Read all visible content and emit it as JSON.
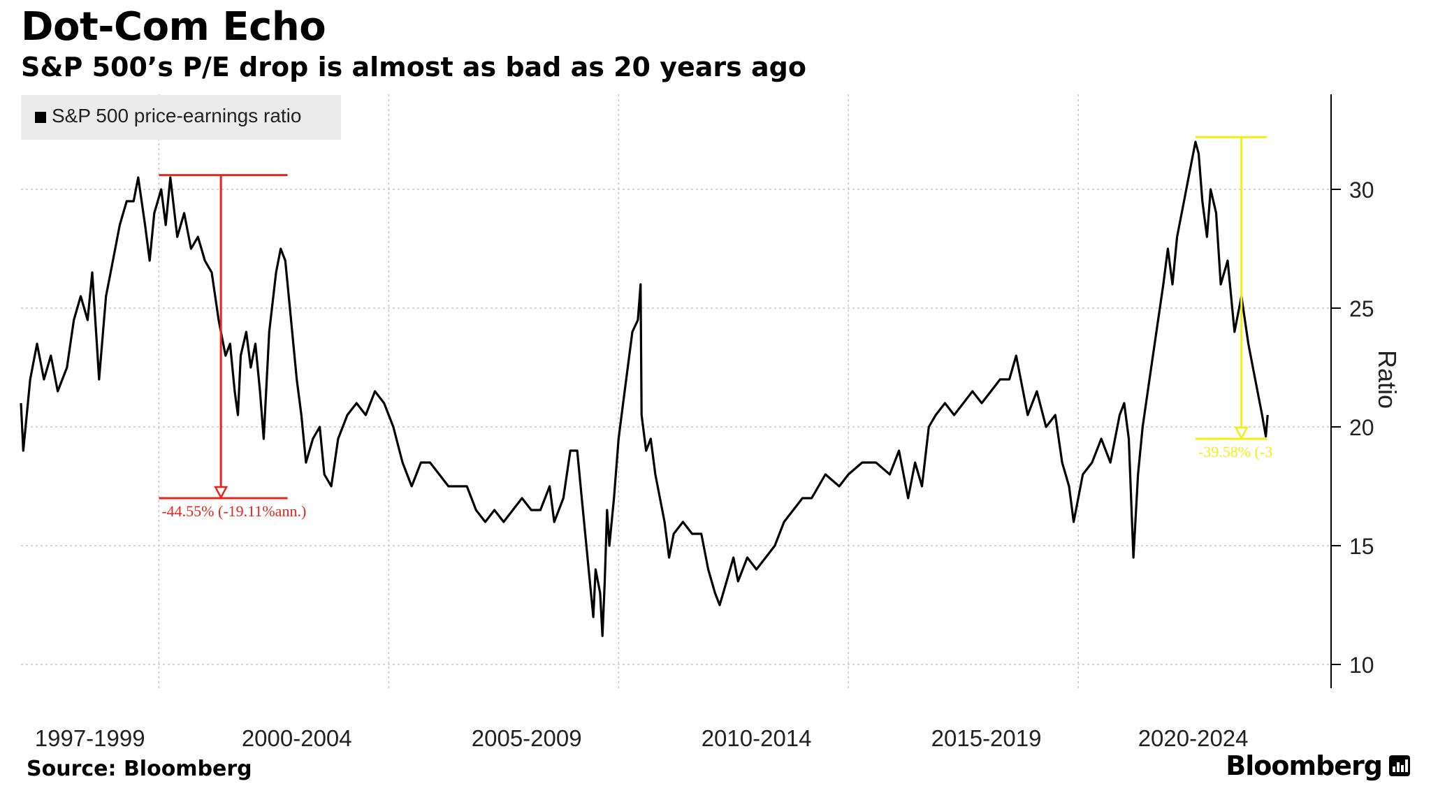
{
  "header": {
    "title": "Dot-Com Echo",
    "subtitle": "S&P 500’s P/E drop is almost as bad as 20 years ago"
  },
  "footer": {
    "source": "Source: Bloomberg",
    "brand": "Bloomberg"
  },
  "chart_data": {
    "type": "line",
    "series": [
      {
        "name": "S&P 500 price-earnings ratio",
        "color": "#000000",
        "points": [
          [
            1996.0,
            21.0
          ],
          [
            1996.05,
            19.0
          ],
          [
            1996.2,
            22.0
          ],
          [
            1996.35,
            23.5
          ],
          [
            1996.5,
            22.0
          ],
          [
            1996.65,
            23.0
          ],
          [
            1996.8,
            21.5
          ],
          [
            1997.0,
            22.5
          ],
          [
            1997.15,
            24.5
          ],
          [
            1997.3,
            25.5
          ],
          [
            1997.45,
            24.5
          ],
          [
            1997.55,
            26.5
          ],
          [
            1997.65,
            23.5
          ],
          [
            1997.7,
            22.0
          ],
          [
            1997.85,
            25.5
          ],
          [
            1998.0,
            27.0
          ],
          [
            1998.15,
            28.5
          ],
          [
            1998.3,
            29.5
          ],
          [
            1998.45,
            29.5
          ],
          [
            1998.55,
            30.5
          ],
          [
            1998.7,
            28.5
          ],
          [
            1998.8,
            27.0
          ],
          [
            1998.9,
            29.0
          ],
          [
            1999.05,
            30.0
          ],
          [
            1999.15,
            28.5
          ],
          [
            1999.25,
            30.5
          ],
          [
            1999.4,
            28.0
          ],
          [
            1999.55,
            29.0
          ],
          [
            1999.7,
            27.5
          ],
          [
            1999.85,
            28.0
          ],
          [
            2000.0,
            27.0
          ],
          [
            2000.15,
            26.5
          ],
          [
            2000.3,
            24.5
          ],
          [
            2000.45,
            23.0
          ],
          [
            2000.55,
            23.5
          ],
          [
            2000.65,
            21.5
          ],
          [
            2000.72,
            20.5
          ],
          [
            2000.78,
            23.0
          ],
          [
            2000.9,
            24.0
          ],
          [
            2001.0,
            22.5
          ],
          [
            2001.1,
            23.5
          ],
          [
            2001.2,
            21.5
          ],
          [
            2001.28,
            19.5
          ],
          [
            2001.4,
            24.0
          ],
          [
            2001.55,
            26.5
          ],
          [
            2001.65,
            27.5
          ],
          [
            2001.75,
            27.0
          ],
          [
            2001.85,
            25.0
          ],
          [
            2002.0,
            22.0
          ],
          [
            2002.1,
            20.5
          ],
          [
            2002.2,
            18.5
          ],
          [
            2002.35,
            19.5
          ],
          [
            2002.5,
            20.0
          ],
          [
            2002.6,
            18.0
          ],
          [
            2002.75,
            17.5
          ],
          [
            2002.9,
            19.5
          ],
          [
            2003.1,
            20.5
          ],
          [
            2003.3,
            21.0
          ],
          [
            2003.5,
            20.5
          ],
          [
            2003.7,
            21.5
          ],
          [
            2003.9,
            21.0
          ],
          [
            2004.1,
            20.0
          ],
          [
            2004.3,
            18.5
          ],
          [
            2004.5,
            17.5
          ],
          [
            2004.7,
            18.5
          ],
          [
            2004.9,
            18.5
          ],
          [
            2005.1,
            18.0
          ],
          [
            2005.3,
            17.5
          ],
          [
            2005.5,
            17.5
          ],
          [
            2005.7,
            17.5
          ],
          [
            2005.9,
            16.5
          ],
          [
            2006.1,
            16.0
          ],
          [
            2006.3,
            16.5
          ],
          [
            2006.5,
            16.0
          ],
          [
            2006.7,
            16.5
          ],
          [
            2006.9,
            17.0
          ],
          [
            2007.1,
            16.5
          ],
          [
            2007.3,
            16.5
          ],
          [
            2007.5,
            17.5
          ],
          [
            2007.6,
            16.0
          ],
          [
            2007.8,
            17.0
          ],
          [
            2007.95,
            19.0
          ],
          [
            2008.1,
            19.0
          ],
          [
            2008.2,
            17.0
          ],
          [
            2008.3,
            15.0
          ],
          [
            2008.4,
            13.0
          ],
          [
            2008.45,
            12.0
          ],
          [
            2008.5,
            14.0
          ],
          [
            2008.6,
            13.0
          ],
          [
            2008.65,
            11.2
          ],
          [
            2008.7,
            13.5
          ],
          [
            2008.75,
            16.5
          ],
          [
            2008.8,
            15.0
          ],
          [
            2008.9,
            17.0
          ],
          [
            2009.0,
            19.5
          ],
          [
            2009.1,
            21.0
          ],
          [
            2009.2,
            22.5
          ],
          [
            2009.3,
            24.0
          ],
          [
            2009.42,
            24.5
          ],
          [
            2009.48,
            26.0
          ],
          [
            2009.5,
            20.5
          ],
          [
            2009.6,
            19.0
          ],
          [
            2009.7,
            19.5
          ],
          [
            2009.8,
            18.0
          ],
          [
            2009.9,
            17.0
          ],
          [
            2010.0,
            16.0
          ],
          [
            2010.1,
            14.5
          ],
          [
            2010.2,
            15.5
          ],
          [
            2010.4,
            16.0
          ],
          [
            2010.6,
            15.5
          ],
          [
            2010.8,
            15.5
          ],
          [
            2010.95,
            14.0
          ],
          [
            2011.1,
            13.0
          ],
          [
            2011.2,
            12.5
          ],
          [
            2011.35,
            13.5
          ],
          [
            2011.5,
            14.5
          ],
          [
            2011.6,
            13.5
          ],
          [
            2011.8,
            14.5
          ],
          [
            2012.0,
            14.0
          ],
          [
            2012.2,
            14.5
          ],
          [
            2012.4,
            15.0
          ],
          [
            2012.6,
            16.0
          ],
          [
            2012.8,
            16.5
          ],
          [
            2013.0,
            17.0
          ],
          [
            2013.2,
            17.0
          ],
          [
            2013.5,
            18.0
          ],
          [
            2013.8,
            17.5
          ],
          [
            2014.0,
            18.0
          ],
          [
            2014.3,
            18.5
          ],
          [
            2014.6,
            18.5
          ],
          [
            2014.9,
            18.0
          ],
          [
            2015.1,
            19.0
          ],
          [
            2015.3,
            17.0
          ],
          [
            2015.45,
            18.5
          ],
          [
            2015.6,
            17.5
          ],
          [
            2015.75,
            20.0
          ],
          [
            2015.9,
            20.5
          ],
          [
            2016.1,
            21.0
          ],
          [
            2016.3,
            20.5
          ],
          [
            2016.5,
            21.0
          ],
          [
            2016.7,
            21.5
          ],
          [
            2016.9,
            21.0
          ],
          [
            2017.1,
            21.5
          ],
          [
            2017.3,
            22.0
          ],
          [
            2017.5,
            22.0
          ],
          [
            2017.65,
            23.0
          ],
          [
            2017.8,
            21.5
          ],
          [
            2017.9,
            20.5
          ],
          [
            2018.1,
            21.5
          ],
          [
            2018.3,
            20.0
          ],
          [
            2018.5,
            20.5
          ],
          [
            2018.65,
            18.5
          ],
          [
            2018.8,
            17.5
          ],
          [
            2018.9,
            16.0
          ],
          [
            2019.1,
            18.0
          ],
          [
            2019.3,
            18.5
          ],
          [
            2019.5,
            19.5
          ],
          [
            2019.7,
            18.5
          ],
          [
            2019.9,
            20.5
          ],
          [
            2020.0,
            21.0
          ],
          [
            2020.1,
            19.5
          ],
          [
            2020.2,
            14.5
          ],
          [
            2020.3,
            18.0
          ],
          [
            2020.4,
            20.0
          ],
          [
            2020.55,
            22.0
          ],
          [
            2020.7,
            24.0
          ],
          [
            2020.85,
            26.0
          ],
          [
            2020.95,
            27.5
          ],
          [
            2021.05,
            26.0
          ],
          [
            2021.15,
            28.0
          ],
          [
            2021.3,
            29.5
          ],
          [
            2021.45,
            31.0
          ],
          [
            2021.55,
            32.0
          ],
          [
            2021.62,
            31.5
          ],
          [
            2021.7,
            29.5
          ],
          [
            2021.8,
            28.0
          ],
          [
            2021.88,
            30.0
          ],
          [
            2022.0,
            29.0
          ],
          [
            2022.1,
            26.0
          ],
          [
            2022.25,
            27.0
          ],
          [
            2022.4,
            24.0
          ],
          [
            2022.55,
            25.5
          ],
          [
            2022.7,
            23.5
          ],
          [
            2022.85,
            22.0
          ],
          [
            2022.95,
            21.0
          ],
          [
            2023.0,
            20.5
          ],
          [
            2023.08,
            19.6
          ],
          [
            2023.12,
            20.5
          ]
        ]
      }
    ],
    "x_range": [
      1996.0,
      2024.5
    ],
    "y_range": [
      9,
      34
    ],
    "y_ticks": [
      10,
      15,
      20,
      25,
      30
    ],
    "x_tick_labels": [
      {
        "label": "1997-1999",
        "at": 1997.5
      },
      {
        "label": "2000-2004",
        "at": 2002.0
      },
      {
        "label": "2005-2009",
        "at": 2007.0
      },
      {
        "label": "2010-2014",
        "at": 2012.0
      },
      {
        "label": "2015-2019",
        "at": 2017.0
      },
      {
        "label": "2020-2024",
        "at": 2021.5
      }
    ],
    "x_gridlines": [
      1999.0,
      2004.0,
      2009.0,
      2014.0,
      2019.0
    ],
    "y_axis_label": "Ratio",
    "y_axis_position": "right",
    "grid": true,
    "legend_position": "top-left",
    "annotations": [
      {
        "color": "#e8251d",
        "x_start": 1999.0,
        "x_end": 2001.8,
        "x_arrow": 2000.35,
        "y_from": 30.6,
        "y_to": 17.0,
        "label": "-44.55% (-19.11%ann.)"
      },
      {
        "color": "#f4ef12",
        "x_start": 2021.55,
        "x_end": 2023.1,
        "x_arrow": 2022.55,
        "y_from": 32.2,
        "y_to": 19.5,
        "label": "-39.58% (-3"
      }
    ]
  }
}
